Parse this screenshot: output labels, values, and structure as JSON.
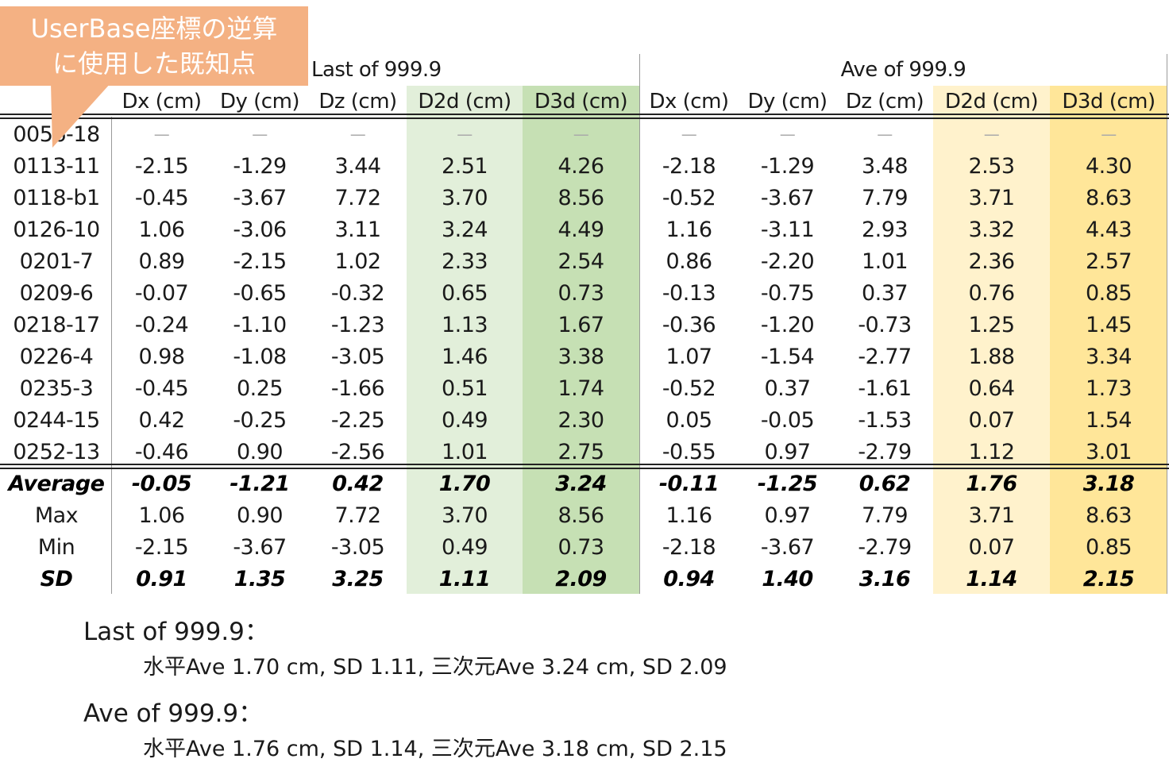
{
  "callout": {
    "line1": "UserBase座標の逆算",
    "line2": "に使用した既知点"
  },
  "groups": {
    "last": "Last of 999.9",
    "ave": "Ave of 999.9"
  },
  "columns": [
    "Dx (cm)",
    "Dy (cm)",
    "Dz (cm)",
    "D2d (cm)",
    "D3d (cm)",
    "Dx (cm)",
    "Dy (cm)",
    "Dz (cm)",
    "D2d (cm)",
    "D3d (cm)"
  ],
  "colors": {
    "green_light": "#e2efda",
    "green_dark": "#c6e0b4",
    "yellow_light": "#fff2cc",
    "yellow_dark": "#ffe699",
    "callout": "#f4b183"
  },
  "rows": [
    {
      "id": "0056-18",
      "values": [
        "—",
        "—",
        "—",
        "—",
        "—",
        "—",
        "—",
        "—",
        "—",
        "—"
      ]
    },
    {
      "id": "0113-11",
      "values": [
        "-2.15",
        "-1.29",
        "3.44",
        "2.51",
        "4.26",
        "-2.18",
        "-1.29",
        "3.48",
        "2.53",
        "4.30"
      ]
    },
    {
      "id": "0118-b1",
      "values": [
        "-0.45",
        "-3.67",
        "7.72",
        "3.70",
        "8.56",
        "-0.52",
        "-3.67",
        "7.79",
        "3.71",
        "8.63"
      ]
    },
    {
      "id": "0126-10",
      "values": [
        "1.06",
        "-3.06",
        "3.11",
        "3.24",
        "4.49",
        "1.16",
        "-3.11",
        "2.93",
        "3.32",
        "4.43"
      ]
    },
    {
      "id": "0201-7",
      "values": [
        "0.89",
        "-2.15",
        "1.02",
        "2.33",
        "2.54",
        "0.86",
        "-2.20",
        "1.01",
        "2.36",
        "2.57"
      ]
    },
    {
      "id": "0209-6",
      "values": [
        "-0.07",
        "-0.65",
        "-0.32",
        "0.65",
        "0.73",
        "-0.13",
        "-0.75",
        "0.37",
        "0.76",
        "0.85"
      ]
    },
    {
      "id": "0218-17",
      "values": [
        "-0.24",
        "-1.10",
        "-1.23",
        "1.13",
        "1.67",
        "-0.36",
        "-1.20",
        "-0.73",
        "1.25",
        "1.45"
      ]
    },
    {
      "id": "0226-4",
      "values": [
        "0.98",
        "-1.08",
        "-3.05",
        "1.46",
        "3.38",
        "1.07",
        "-1.54",
        "-2.77",
        "1.88",
        "3.34"
      ]
    },
    {
      "id": "0235-3",
      "values": [
        "-0.45",
        "0.25",
        "-1.66",
        "0.51",
        "1.74",
        "-0.52",
        "0.37",
        "-1.61",
        "0.64",
        "1.73"
      ]
    },
    {
      "id": "0244-15",
      "values": [
        "0.42",
        "-0.25",
        "-2.25",
        "0.49",
        "2.30",
        "0.05",
        "-0.05",
        "-1.53",
        "0.07",
        "1.54"
      ]
    },
    {
      "id": "0252-13",
      "values": [
        "-0.46",
        "0.90",
        "-2.56",
        "1.01",
        "2.75",
        "-0.55",
        "0.97",
        "-2.79",
        "1.12",
        "3.01"
      ]
    }
  ],
  "stats": [
    {
      "label": "Average",
      "bold": true,
      "values": [
        "-0.05",
        "-1.21",
        "0.42",
        "1.70",
        "3.24",
        "-0.11",
        "-1.25",
        "0.62",
        "1.76",
        "3.18"
      ]
    },
    {
      "label": "Max",
      "bold": false,
      "values": [
        "1.06",
        "0.90",
        "7.72",
        "3.70",
        "8.56",
        "1.16",
        "0.97",
        "7.79",
        "3.71",
        "8.63"
      ]
    },
    {
      "label": "Min",
      "bold": false,
      "values": [
        "-2.15",
        "-3.67",
        "-3.05",
        "0.49",
        "0.73",
        "-2.18",
        "-3.67",
        "-2.79",
        "0.07",
        "0.85"
      ]
    },
    {
      "label": "SD",
      "bold": true,
      "values": [
        "0.91",
        "1.35",
        "3.25",
        "1.11",
        "2.09",
        "0.94",
        "1.40",
        "3.16",
        "1.14",
        "2.15"
      ]
    }
  ],
  "summary": [
    {
      "title": "Last of 999.9：",
      "detail": "水平Ave 1.70 cm, SD 1.11, 三次元Ave 3.24 cm, SD 2.09"
    },
    {
      "title": "Ave of 999.9：",
      "detail": "水平Ave 1.76 cm, SD 1.14, 三次元Ave 3.18 cm, SD 2.15"
    }
  ]
}
